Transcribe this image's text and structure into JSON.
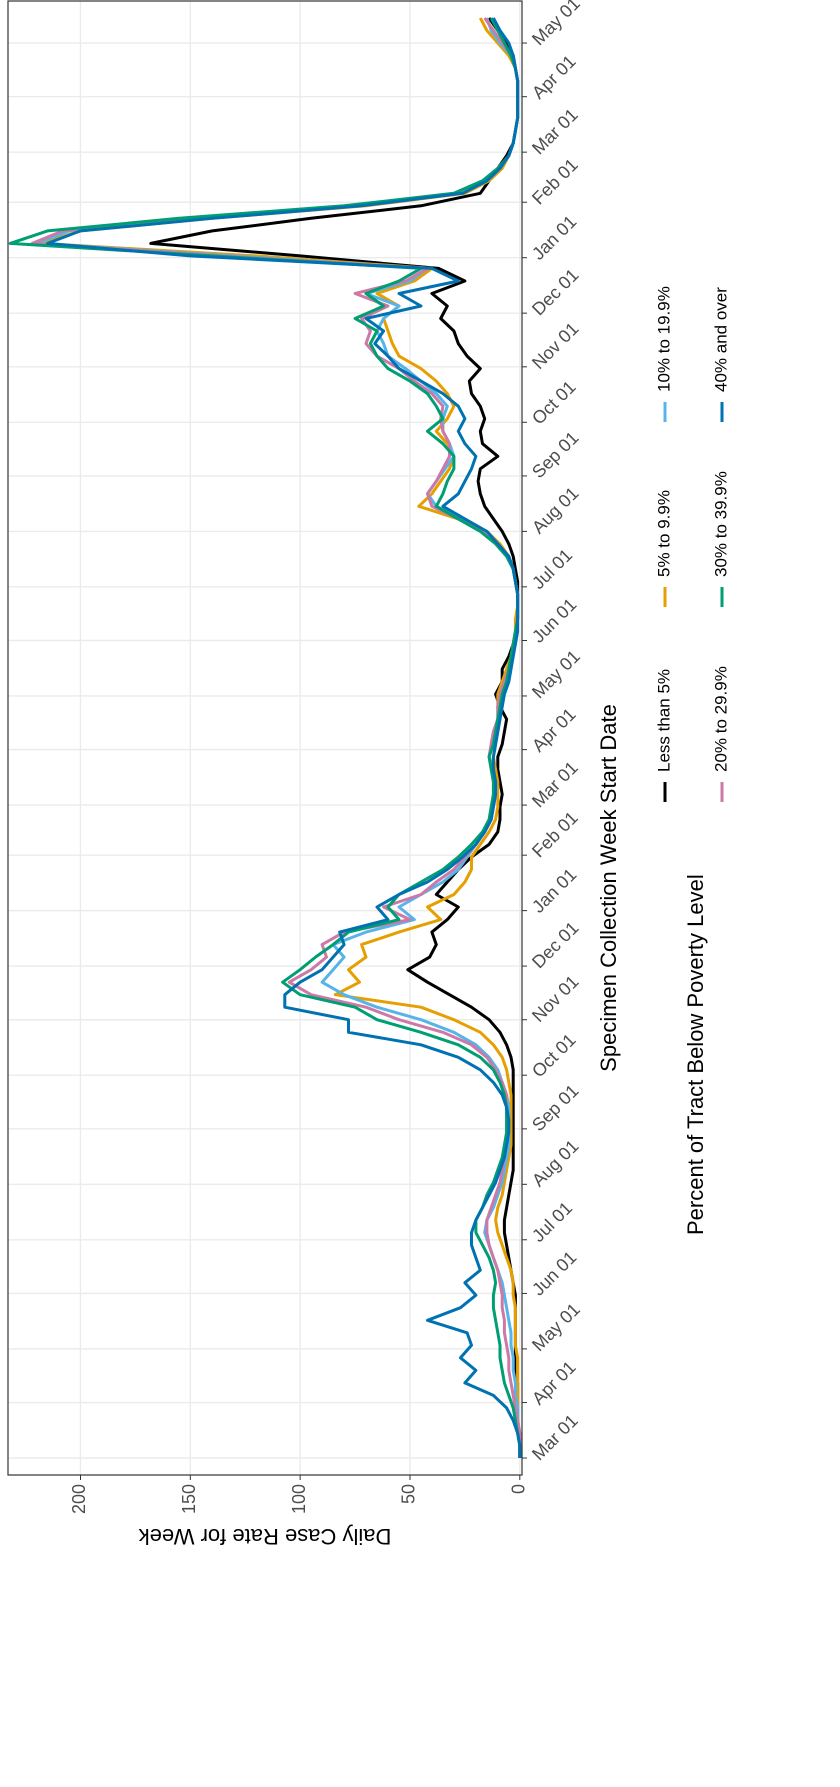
{
  "chart_data": {
    "type": "line",
    "y_label": "Daily Case Rate for Week",
    "x_label": "Specimen Collection Week Start Date",
    "legend_title": "Percent of Tract Below Poverty Level",
    "x": [
      0,
      7,
      14,
      21,
      28,
      35,
      42,
      49,
      56,
      63,
      70,
      77,
      84,
      91,
      98,
      105,
      112,
      119,
      126,
      133,
      140,
      147,
      154,
      161,
      168,
      175,
      182,
      189,
      196,
      203,
      210,
      217,
      224,
      231,
      238,
      245,
      252,
      259,
      266,
      273,
      280,
      287,
      294,
      301,
      308,
      315,
      322,
      329,
      336,
      343,
      350,
      357,
      364,
      371,
      378,
      385,
      392,
      399,
      406,
      413,
      420,
      427,
      434,
      441,
      448,
      455,
      462,
      469,
      476,
      483,
      490,
      497,
      504,
      511,
      518,
      525,
      532,
      539,
      546,
      553,
      560,
      567,
      574,
      581,
      588,
      595,
      602,
      609,
      616,
      623,
      630,
      637,
      644,
      651,
      658,
      665,
      672,
      679,
      686,
      693,
      700,
      707,
      714,
      721,
      728,
      735,
      742,
      749,
      756,
      763,
      770,
      777,
      784,
      791,
      798,
      805
    ],
    "xlim": [
      -9.5,
      814.5
    ],
    "xticks": [
      {
        "value": 0,
        "label": "Mar 01"
      },
      {
        "value": 31,
        "label": "Apr 01"
      },
      {
        "value": 61,
        "label": "May 01"
      },
      {
        "value": 92,
        "label": "Jun 01"
      },
      {
        "value": 122,
        "label": "Jul 01"
      },
      {
        "value": 153,
        "label": "Aug 01"
      },
      {
        "value": 184,
        "label": "Sep 01"
      },
      {
        "value": 214,
        "label": "Oct 01"
      },
      {
        "value": 245,
        "label": "Nov 01"
      },
      {
        "value": 275,
        "label": "Dec 01"
      },
      {
        "value": 306,
        "label": "Jan 01"
      },
      {
        "value": 337,
        "label": "Feb 01"
      },
      {
        "value": 365,
        "label": "Mar 01"
      },
      {
        "value": 396,
        "label": "Apr 01"
      },
      {
        "value": 426,
        "label": "May 01"
      },
      {
        "value": 457,
        "label": "Jun 01"
      },
      {
        "value": 487,
        "label": "Jul 01"
      },
      {
        "value": 518,
        "label": "Aug 01"
      },
      {
        "value": 549,
        "label": "Sep 01"
      },
      {
        "value": 579,
        "label": "Oct 01"
      },
      {
        "value": 610,
        "label": "Nov 01"
      },
      {
        "value": 640,
        "label": "Dec 01"
      },
      {
        "value": 671,
        "label": "Jan 01"
      },
      {
        "value": 702,
        "label": "Feb 01"
      },
      {
        "value": 730,
        "label": "Mar 01"
      },
      {
        "value": 761,
        "label": "Apr 01"
      },
      {
        "value": 791,
        "label": "May 01"
      }
    ],
    "ylim": [
      -1,
      233
    ],
    "yticks": [
      0,
      50,
      100,
      150,
      200
    ],
    "grid": true,
    "legend_position": "bottom",
    "series": [
      {
        "name": "Less than 5%",
        "color": "#000000",
        "values": [
          0,
          0,
          0,
          1,
          1,
          1,
          1,
          2,
          2,
          2,
          2,
          2,
          2,
          2,
          3,
          4,
          5,
          6,
          7,
          7,
          6,
          5,
          4,
          3,
          3,
          3,
          3,
          3,
          3,
          3,
          3,
          3,
          4,
          6,
          9,
          14,
          22,
          32,
          42,
          51,
          41,
          38,
          40,
          33,
          28,
          38,
          33,
          28,
          22,
          14,
          10,
          9,
          9,
          8,
          9,
          10,
          10,
          8,
          7,
          6,
          9,
          11,
          8,
          8,
          5,
          3,
          2,
          1,
          1,
          1,
          1,
          2,
          3,
          5,
          8,
          12,
          16,
          18,
          19,
          18,
          10,
          17,
          18,
          16,
          18,
          22,
          23,
          18,
          24,
          28,
          30,
          36,
          33,
          40,
          25,
          37,
          100,
          168,
          140,
          95,
          45,
          18,
          14,
          10,
          6,
          3,
          2,
          1,
          1,
          1,
          1,
          2,
          3,
          6,
          10,
          14
        ]
      },
      {
        "name": "5% to 9.9%",
        "color": "#E69F00",
        "values": [
          0,
          0,
          0,
          1,
          1,
          1,
          1,
          1,
          1,
          2,
          2,
          2,
          2,
          3,
          3,
          4,
          6,
          8,
          10,
          11,
          10,
          8,
          7,
          6,
          5,
          4,
          4,
          4,
          4,
          4,
          5,
          6,
          8,
          12,
          18,
          30,
          45,
          84,
          73,
          78,
          70,
          72,
          55,
          36,
          42,
          30,
          25,
          22,
          22,
          18,
          14,
          11,
          10,
          10,
          10,
          11,
          12,
          11,
          10,
          9,
          10,
          10,
          8,
          6,
          4,
          3,
          2,
          2,
          1,
          1,
          2,
          3,
          5,
          9,
          15,
          28,
          46,
          40,
          36,
          32,
          30,
          33,
          38,
          33,
          30,
          33,
          38,
          45,
          55,
          58,
          60,
          62,
          55,
          65,
          48,
          40,
          120,
          218,
          200,
          140,
          70,
          25,
          14,
          8,
          5,
          3,
          2,
          1,
          1,
          1,
          1,
          2,
          5,
          10,
          15,
          18
        ]
      },
      {
        "name": "10% to 19.9%",
        "color": "#56B4E9",
        "values": [
          0,
          0,
          0,
          1,
          1,
          2,
          2,
          3,
          3,
          4,
          4,
          5,
          6,
          7,
          8,
          10,
          12,
          14,
          16,
          15,
          12,
          10,
          8,
          7,
          6,
          5,
          5,
          5,
          5,
          6,
          8,
          10,
          14,
          20,
          30,
          45,
          65,
          80,
          90,
          85,
          80,
          85,
          70,
          48,
          55,
          45,
          35,
          28,
          24,
          20,
          16,
          13,
          12,
          11,
          11,
          12,
          14,
          13,
          12,
          10,
          10,
          9,
          7,
          5,
          4,
          3,
          2,
          1,
          1,
          1,
          2,
          3,
          5,
          10,
          16,
          26,
          38,
          42,
          38,
          34,
          30,
          32,
          35,
          35,
          33,
          38,
          45,
          52,
          60,
          62,
          65,
          62,
          55,
          70,
          50,
          42,
          130,
          220,
          205,
          145,
          75,
          27,
          15,
          9,
          5,
          3,
          2,
          1,
          1,
          1,
          1,
          2,
          4,
          9,
          13,
          15
        ]
      },
      {
        "name": "20% to 29.9%",
        "color": "#CC79A7",
        "values": [
          0,
          0,
          0,
          1,
          2,
          3,
          4,
          5,
          5,
          6,
          7,
          7,
          8,
          8,
          9,
          10,
          12,
          14,
          15,
          15,
          13,
          11,
          9,
          8,
          7,
          6,
          6,
          6,
          6,
          6,
          8,
          11,
          15,
          22,
          35,
          55,
          70,
          95,
          105,
          95,
          88,
          90,
          80,
          50,
          62,
          45,
          38,
          30,
          25,
          20,
          16,
          13,
          12,
          11,
          12,
          13,
          14,
          13,
          12,
          10,
          10,
          9,
          7,
          5,
          4,
          3,
          2,
          1,
          1,
          1,
          2,
          3,
          5,
          10,
          17,
          28,
          40,
          42,
          38,
          35,
          32,
          32,
          35,
          36,
          35,
          40,
          48,
          55,
          65,
          70,
          68,
          72,
          60,
          75,
          52,
          42,
          135,
          222,
          208,
          150,
          78,
          28,
          16,
          10,
          5,
          3,
          2,
          1,
          1,
          1,
          1,
          2,
          4,
          8,
          12,
          16
        ]
      },
      {
        "name": "30% to 39.9%",
        "color": "#009E73",
        "values": [
          0,
          0,
          1,
          2,
          3,
          5,
          7,
          8,
          9,
          9,
          10,
          11,
          12,
          12,
          11,
          12,
          14,
          17,
          20,
          20,
          17,
          15,
          12,
          10,
          8,
          7,
          6,
          6,
          6,
          7,
          9,
          12,
          18,
          28,
          45,
          65,
          75,
          100,
          108,
          100,
          93,
          85,
          78,
          55,
          60,
          55,
          45,
          35,
          28,
          22,
          17,
          14,
          13,
          12,
          12,
          13,
          14,
          12,
          11,
          10,
          9,
          8,
          6,
          5,
          4,
          3,
          2,
          1,
          1,
          1,
          2,
          3,
          6,
          11,
          18,
          28,
          38,
          35,
          33,
          30,
          30,
          35,
          42,
          35,
          38,
          42,
          50,
          60,
          65,
          68,
          65,
          75,
          62,
          70,
          55,
          45,
          140,
          232,
          215,
          155,
          80,
          30,
          17,
          10,
          5,
          3,
          2,
          1,
          1,
          1,
          1,
          2,
          4,
          7,
          10,
          13
        ]
      },
      {
        "name": "40% and over",
        "color": "#0072B2",
        "values": [
          0,
          0,
          1,
          3,
          6,
          12,
          25,
          20,
          27,
          22,
          24,
          42,
          27,
          20,
          25,
          18,
          20,
          22,
          22,
          20,
          17,
          14,
          11,
          9,
          7,
          6,
          5,
          5,
          6,
          8,
          12,
          18,
          28,
          45,
          78,
          78,
          107,
          107,
          100,
          90,
          85,
          80,
          82,
          60,
          65,
          55,
          42,
          33,
          26,
          20,
          16,
          13,
          12,
          11,
          11,
          12,
          12,
          11,
          10,
          9,
          8,
          7,
          5,
          4,
          3,
          2,
          1,
          1,
          1,
          1,
          2,
          3,
          5,
          10,
          15,
          25,
          35,
          28,
          25,
          22,
          20,
          25,
          28,
          25,
          28,
          35,
          45,
          55,
          60,
          66,
          62,
          70,
          45,
          55,
          28,
          40,
          150,
          215,
          200,
          140,
          72,
          26,
          15,
          9,
          5,
          3,
          2,
          1,
          1,
          1,
          1,
          2,
          3,
          5,
          9,
          12
        ]
      }
    ]
  }
}
